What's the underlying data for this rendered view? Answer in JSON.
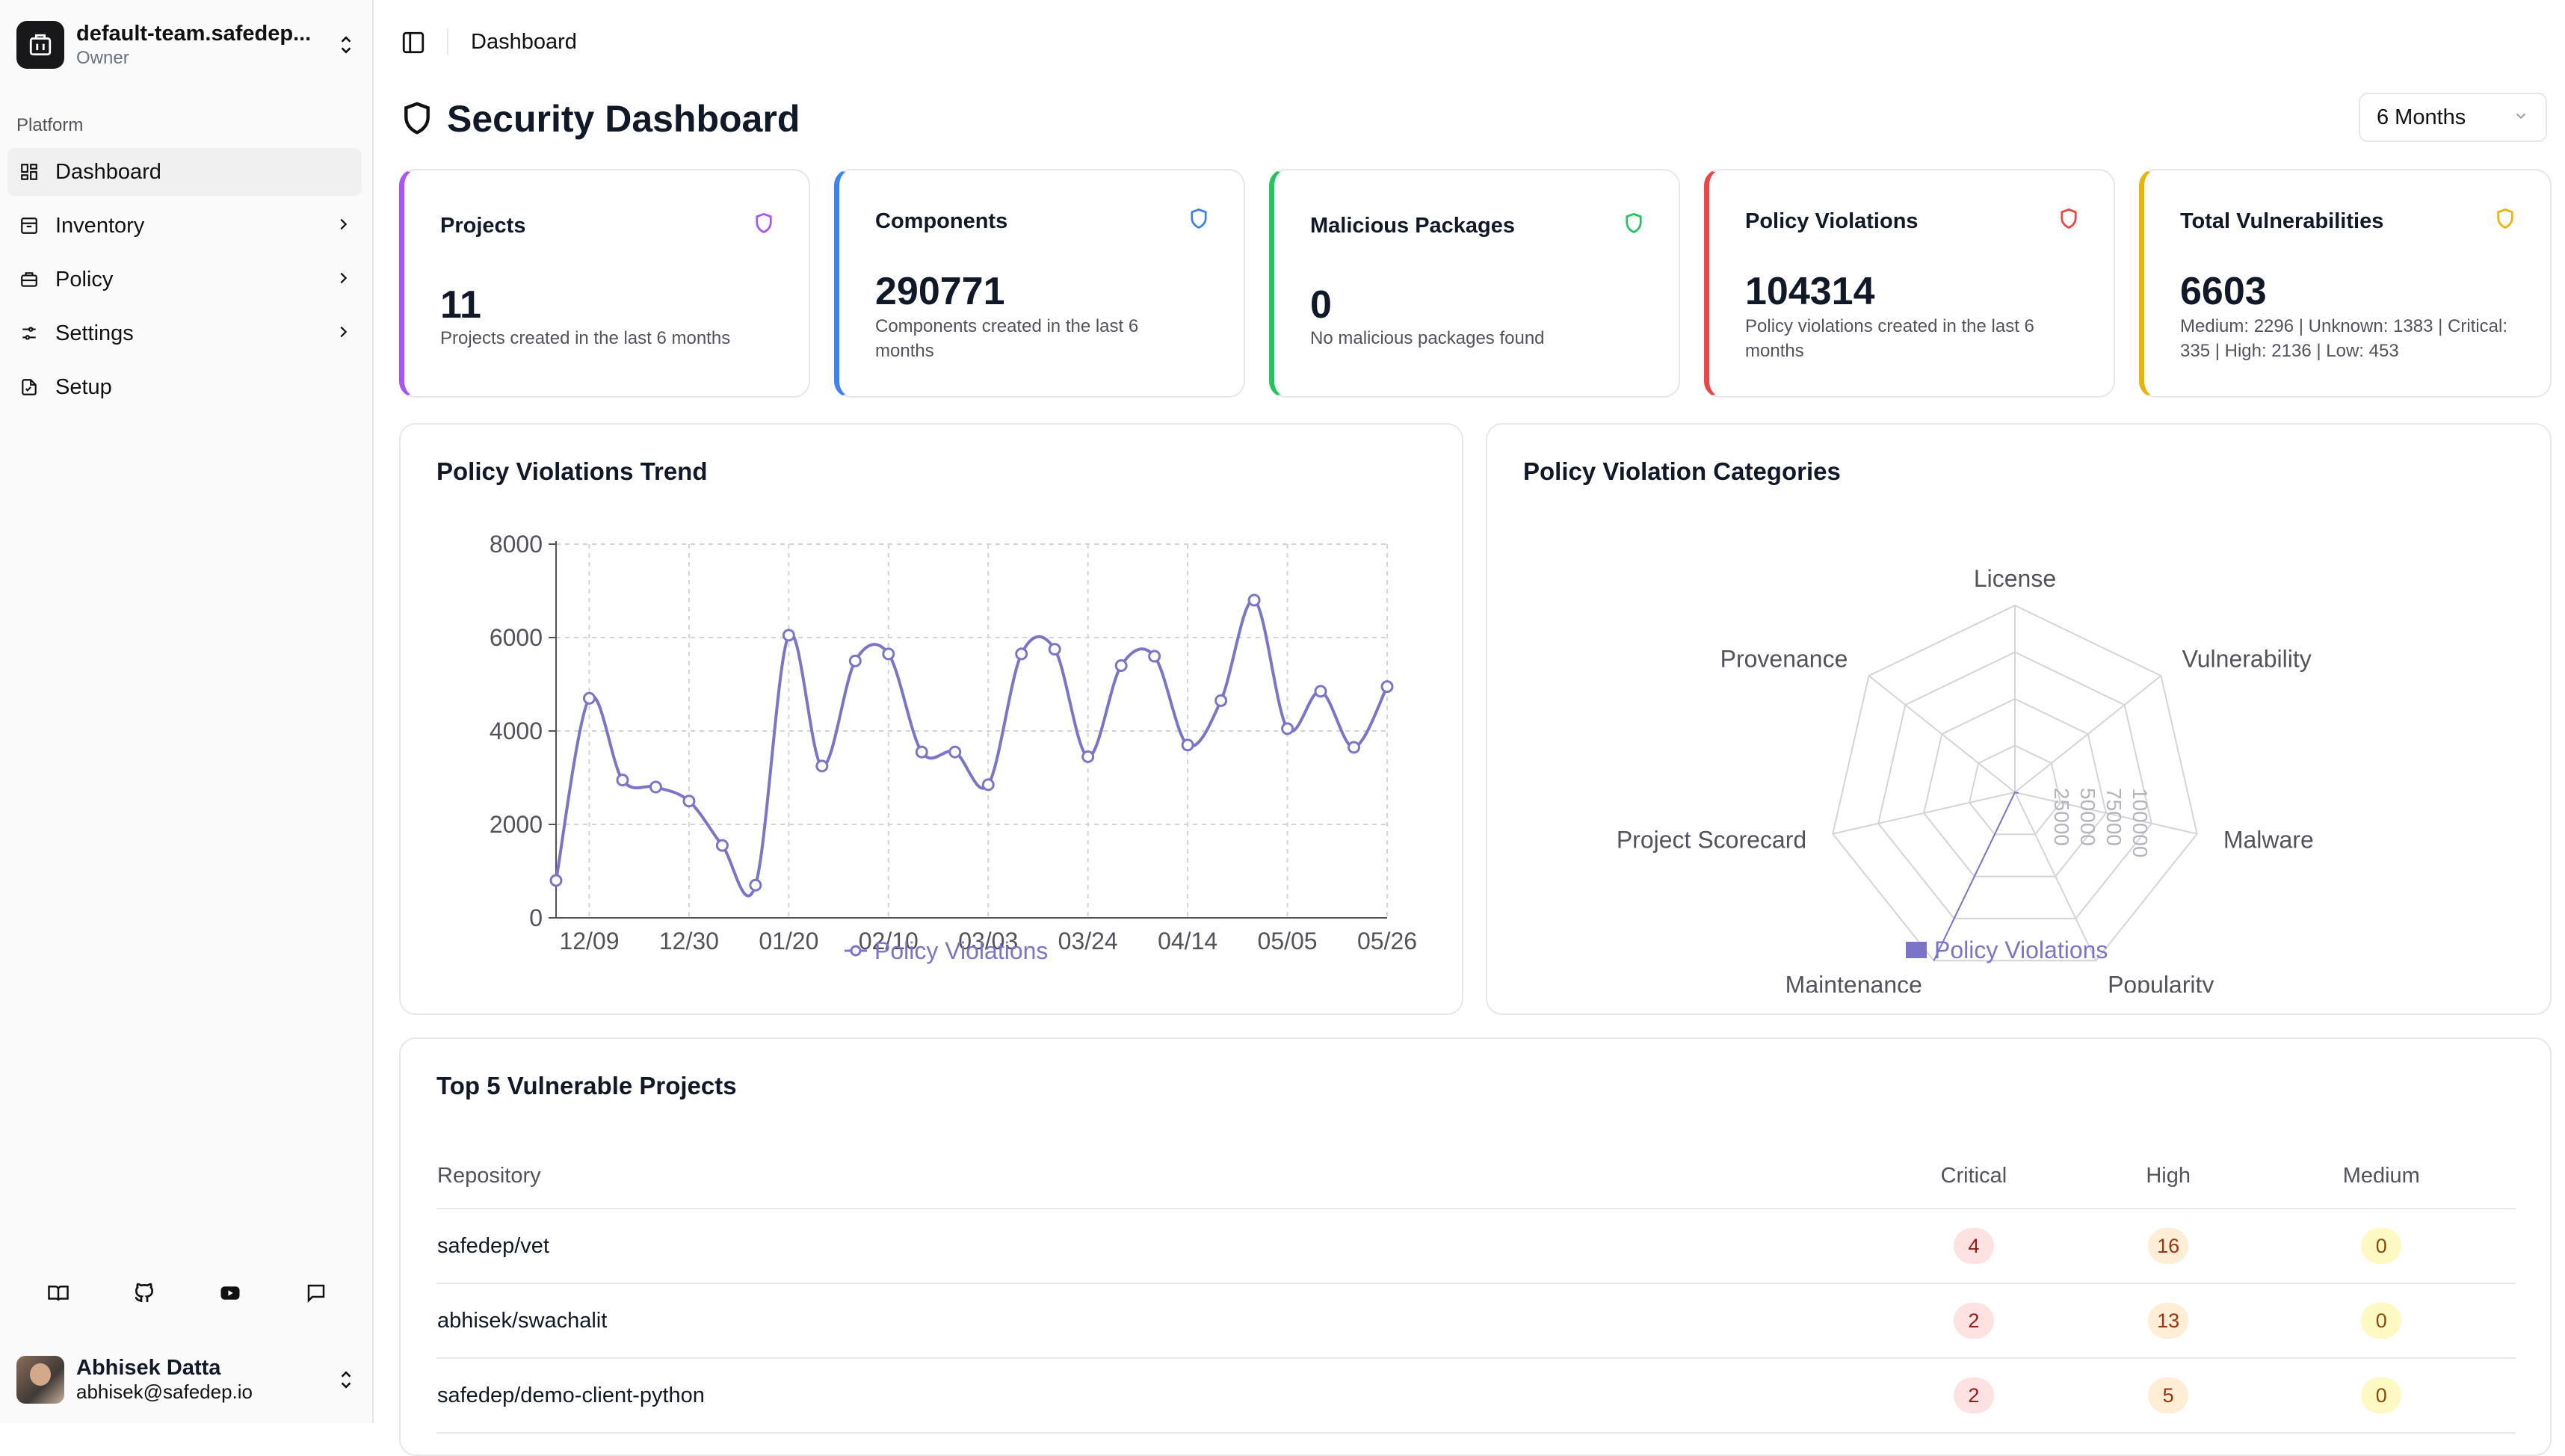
{
  "sidebar": {
    "team": {
      "name": "default-team.safedep...",
      "role": "Owner"
    },
    "section_label": "Platform",
    "items": [
      {
        "label": "Dashboard",
        "icon": "grid-icon",
        "active": true
      },
      {
        "label": "Inventory",
        "icon": "box-icon",
        "chevron": true
      },
      {
        "label": "Policy",
        "icon": "briefcase-icon",
        "chevron": true
      },
      {
        "label": "Settings",
        "icon": "sliders-icon",
        "chevron": true
      },
      {
        "label": "Setup",
        "icon": "setup-icon"
      }
    ],
    "footer_icons": [
      "book-icon",
      "github-icon",
      "youtube-icon",
      "chat-icon"
    ],
    "user": {
      "name": "Abhisek Datta",
      "email": "abhisek@safedep.io"
    }
  },
  "header": {
    "breadcrumb": "Dashboard"
  },
  "page": {
    "title": "Security Dashboard",
    "period": "6 Months"
  },
  "stats": [
    {
      "title": "Projects",
      "value": "11",
      "desc": "Projects created in the last 6 months",
      "color": "#a855f7"
    },
    {
      "title": "Components",
      "value": "290771",
      "desc": "Components created in the last 6 months",
      "color": "#3b82f6"
    },
    {
      "title": "Malicious Packages",
      "value": "0",
      "desc": "No malicious packages found",
      "color": "#22c55e"
    },
    {
      "title": "Policy Violations",
      "value": "104314",
      "desc": "Policy violations created in the last 6 months",
      "color": "#ef4444"
    },
    {
      "title": "Total Vulnerabilities",
      "value": "6603",
      "desc": "Medium: 2296 | Unknown: 1383 | Critical: 335 | High: 2136 | Low: 453",
      "color": "#eab308"
    }
  ],
  "trend_panel": {
    "title": "Policy Violations Trend"
  },
  "categories_panel": {
    "title": "Policy Violation Categories"
  },
  "chart_data": [
    {
      "type": "line",
      "title": "Policy Violations Trend",
      "series": [
        {
          "name": "Policy Violations",
          "color": "#7c74c8",
          "values": [
            800,
            4700,
            2950,
            2800,
            2500,
            1550,
            700,
            6050,
            3250,
            5500,
            5650,
            3550,
            3550,
            2850,
            5650,
            5750,
            3450,
            5400,
            5600,
            3700,
            4650,
            6800,
            4050,
            4850,
            3650,
            4950
          ]
        }
      ],
      "x_tick_labels": [
        "12/09",
        "12/30",
        "01/20",
        "02/10",
        "03/03",
        "03/24",
        "04/14",
        "05/05",
        "05/26"
      ],
      "y_ticks": [
        0,
        2000,
        4000,
        6000,
        8000
      ],
      "ylim": [
        0,
        8000
      ],
      "grid": true,
      "legend": "bottom"
    },
    {
      "type": "radar",
      "title": "Policy Violation Categories",
      "axes": [
        "License",
        "Vulnerability",
        "Malware",
        "Popularity",
        "Maintenance",
        "Project Scorecard",
        "Provenance"
      ],
      "series": [
        {
          "name": "Policy Violations",
          "color": "#7c74c8",
          "values": [
            0,
            0,
            2000,
            0,
            100000,
            0,
            0
          ]
        }
      ],
      "radial_ticks": [
        "25000",
        "50000",
        "75000",
        "100000"
      ],
      "radial_max": 100000,
      "legend": "bottom"
    }
  ],
  "vuln_table": {
    "title": "Top 5 Vulnerable Projects",
    "headers": {
      "repo": "Repository",
      "critical": "Critical",
      "high": "High",
      "medium": "Medium"
    },
    "rows": [
      {
        "repo": "safedep/vet",
        "critical": "4",
        "high": "16",
        "medium": "0"
      },
      {
        "repo": "abhisek/swachalit",
        "critical": "2",
        "high": "13",
        "medium": "0"
      },
      {
        "repo": "safedep/demo-client-python",
        "critical": "2",
        "high": "5",
        "medium": "0"
      }
    ]
  }
}
